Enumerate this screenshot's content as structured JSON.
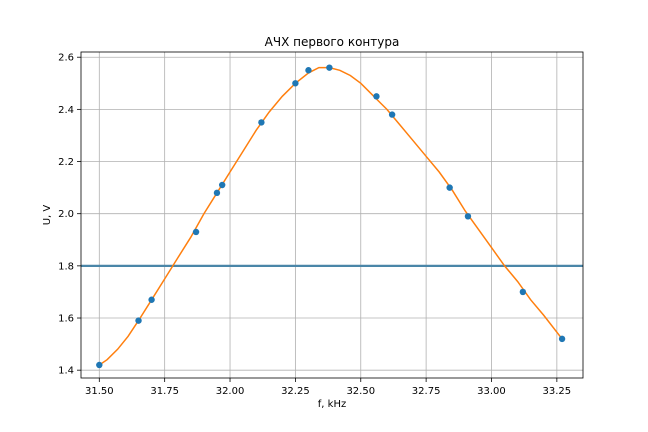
{
  "chart_data": {
    "type": "scatter",
    "title": "АЧХ первого контура",
    "xlabel": "f, kHz",
    "ylabel": "U, V",
    "xlim": [
      31.43,
      33.35
    ],
    "ylim": [
      1.37,
      2.62
    ],
    "xticks": [
      "31.50",
      "31.75",
      "32.00",
      "32.25",
      "32.50",
      "32.75",
      "33.00",
      "33.25"
    ],
    "yticks": [
      "1.4",
      "1.6",
      "1.8",
      "2.0",
      "2.2",
      "2.4",
      "2.6"
    ],
    "grid": true,
    "series": [
      {
        "kind": "points",
        "color": "#1f77b4",
        "x": [
          31.5,
          31.65,
          31.7,
          31.87,
          31.95,
          31.97,
          32.12,
          32.25,
          32.3,
          32.38,
          32.56,
          32.62,
          32.84,
          32.91,
          33.12,
          33.27
        ],
        "y": [
          1.42,
          1.59,
          1.67,
          1.93,
          2.08,
          2.11,
          2.35,
          2.5,
          2.55,
          2.56,
          2.45,
          2.38,
          2.1,
          1.99,
          1.7,
          1.52
        ]
      },
      {
        "kind": "curve",
        "color": "#ff7f0e",
        "x": [
          31.5,
          31.53,
          31.57,
          31.61,
          31.65,
          31.7,
          31.75,
          31.8,
          31.85,
          31.9,
          31.95,
          32.0,
          32.05,
          32.1,
          32.15,
          32.2,
          32.25,
          32.3,
          32.34,
          32.38,
          32.42,
          32.46,
          32.5,
          32.55,
          32.6,
          32.65,
          32.7,
          32.75,
          32.8,
          32.85,
          32.9,
          32.95,
          33.0,
          33.05,
          33.1,
          33.15,
          33.2,
          33.27
        ],
        "y": [
          1.42,
          1.44,
          1.48,
          1.53,
          1.59,
          1.67,
          1.75,
          1.83,
          1.91,
          2.0,
          2.08,
          2.16,
          2.24,
          2.32,
          2.39,
          2.45,
          2.5,
          2.54,
          2.56,
          2.56,
          2.55,
          2.53,
          2.5,
          2.45,
          2.4,
          2.34,
          2.28,
          2.22,
          2.16,
          2.09,
          2.01,
          1.94,
          1.87,
          1.8,
          1.74,
          1.67,
          1.61,
          1.52
        ]
      },
      {
        "kind": "hline",
        "color": "#4a86a8",
        "y": 1.8
      }
    ]
  }
}
